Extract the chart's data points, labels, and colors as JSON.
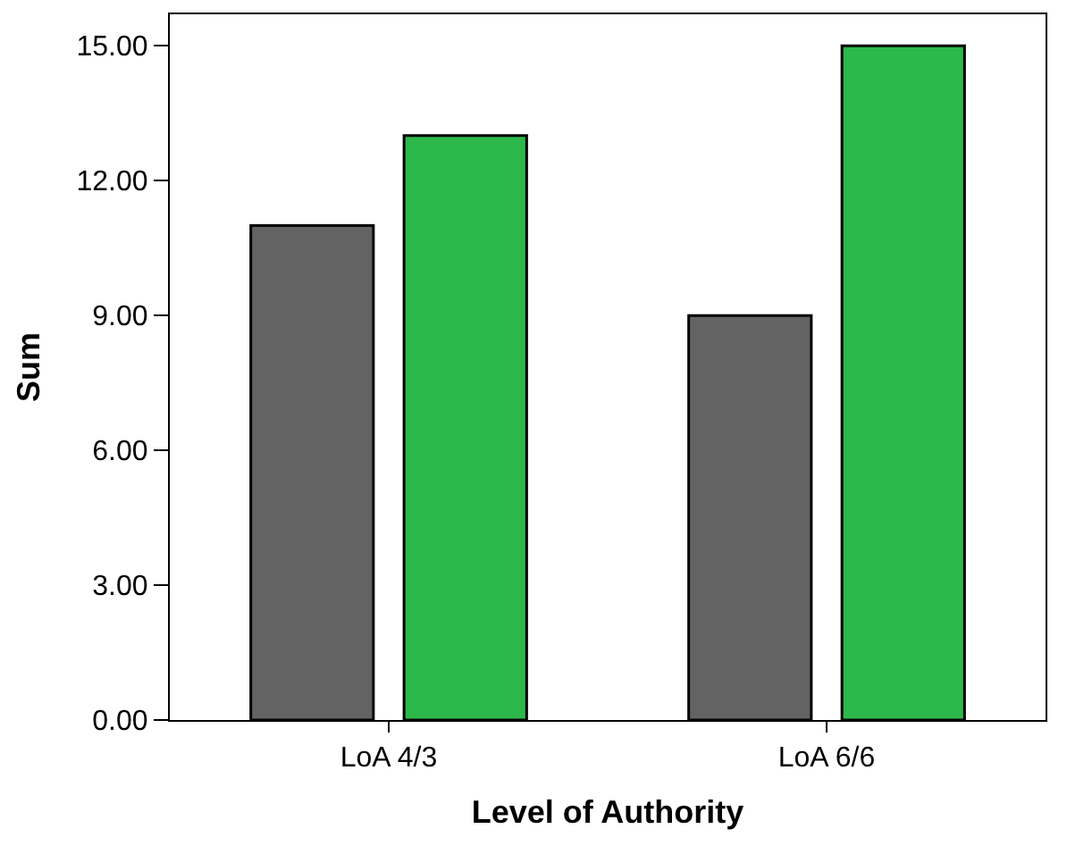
{
  "chart_data": {
    "type": "bar",
    "xlabel": "Level of Authority",
    "ylabel": "Sum",
    "categories": [
      "LoA 4/3",
      "LoA 6/6"
    ],
    "series": [
      {
        "color": "#636363",
        "values": [
          11,
          9
        ]
      },
      {
        "color": "#2db84b",
        "values": [
          13,
          15
        ]
      }
    ],
    "ylim": [
      0,
      15.7
    ],
    "yticks": [
      {
        "value": 0,
        "label": "0.00"
      },
      {
        "value": 3,
        "label": "3.00"
      },
      {
        "value": 6,
        "label": "6.00"
      },
      {
        "value": 9,
        "label": "9.00"
      },
      {
        "value": 12,
        "label": "12.00"
      },
      {
        "value": 15,
        "label": "15.00"
      }
    ],
    "legend": false
  }
}
